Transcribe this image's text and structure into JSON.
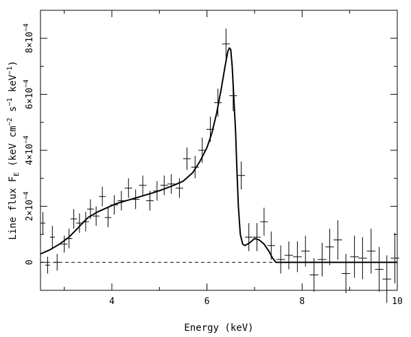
{
  "chart_data": {
    "type": "scatter",
    "xlabel": "Energy (keV)",
    "ylabel_parts": {
      "prefix": "Line flux F",
      "subscript": "E",
      "units_open": " (keV cm",
      "exp1": "−2",
      "mid1": " s",
      "exp2": "−1",
      "mid2": " keV",
      "exp3": "−1",
      "units_close": ")"
    },
    "xlim": [
      2.5,
      10.0
    ],
    "ylim": [
      -0.0001,
      0.0009
    ],
    "x_ticks": [
      {
        "value": 4,
        "label": "4"
      },
      {
        "value": 6,
        "label": "6"
      },
      {
        "value": 8,
        "label": "8"
      },
      {
        "value": 10,
        "label": "10"
      }
    ],
    "x_minor_ticks": [
      3,
      5,
      7,
      9
    ],
    "y_ticks": [
      {
        "value": 0,
        "mantissa": "0",
        "exp": ""
      },
      {
        "value": 0.0002,
        "mantissa": "2×10",
        "exp": "−4"
      },
      {
        "value": 0.0004,
        "mantissa": "4×10",
        "exp": "−4"
      },
      {
        "value": 0.0006,
        "mantissa": "6×10",
        "exp": "−4"
      },
      {
        "value": 0.0008,
        "mantissa": "8×10",
        "exp": "−4"
      }
    ],
    "y_minor_ticks": [
      0.0001,
      0.0003,
      0.0005,
      0.0007
    ],
    "zero_line": {
      "y": 0,
      "style": "dashed"
    },
    "grid": false,
    "series": [
      {
        "kind": "data_points_with_errorbars",
        "points": [
          {
            "x": 2.55,
            "xerr": 0.05,
            "y": 0.00014,
            "yerr": 4e-05
          },
          {
            "x": 2.65,
            "xerr": 0.05,
            "y": -1e-05,
            "yerr": 3e-05
          },
          {
            "x": 2.75,
            "xerr": 0.05,
            "y": 9e-05,
            "yerr": 4e-05
          },
          {
            "x": 2.85,
            "xerr": 0.05,
            "y": 0.0,
            "yerr": 3e-05
          },
          {
            "x": 3.0,
            "xerr": 0.07,
            "y": 6.5e-05,
            "yerr": 3e-05
          },
          {
            "x": 3.1,
            "xerr": 0.07,
            "y": 8.5e-05,
            "yerr": 3.5e-05
          },
          {
            "x": 3.2,
            "xerr": 0.07,
            "y": 0.000155,
            "yerr": 3.5e-05
          },
          {
            "x": 3.32,
            "xerr": 0.07,
            "y": 0.00014,
            "yerr": 3.5e-05
          },
          {
            "x": 3.45,
            "xerr": 0.07,
            "y": 0.000145,
            "yerr": 3.5e-05
          },
          {
            "x": 3.55,
            "xerr": 0.07,
            "y": 0.00019,
            "yerr": 3.5e-05
          },
          {
            "x": 3.67,
            "xerr": 0.07,
            "y": 0.000165,
            "yerr": 3.5e-05
          },
          {
            "x": 3.8,
            "xerr": 0.07,
            "y": 0.000235,
            "yerr": 3.5e-05
          },
          {
            "x": 3.92,
            "xerr": 0.07,
            "y": 0.00016,
            "yerr": 3.5e-05
          },
          {
            "x": 4.05,
            "xerr": 0.08,
            "y": 0.000205,
            "yerr": 3.5e-05
          },
          {
            "x": 4.2,
            "xerr": 0.08,
            "y": 0.00022,
            "yerr": 3.5e-05
          },
          {
            "x": 4.35,
            "xerr": 0.08,
            "y": 0.000265,
            "yerr": 3.5e-05
          },
          {
            "x": 4.5,
            "xerr": 0.08,
            "y": 0.000225,
            "yerr": 3.5e-05
          },
          {
            "x": 4.65,
            "xerr": 0.08,
            "y": 0.000275,
            "yerr": 3.5e-05
          },
          {
            "x": 4.8,
            "xerr": 0.08,
            "y": 0.00022,
            "yerr": 3.5e-05
          },
          {
            "x": 4.95,
            "xerr": 0.08,
            "y": 0.000255,
            "yerr": 3.5e-05
          },
          {
            "x": 5.1,
            "xerr": 0.08,
            "y": 0.000275,
            "yerr": 3.5e-05
          },
          {
            "x": 5.25,
            "xerr": 0.08,
            "y": 0.00028,
            "yerr": 3.5e-05
          },
          {
            "x": 5.42,
            "xerr": 0.08,
            "y": 0.000265,
            "yerr": 3.5e-05
          },
          {
            "x": 5.58,
            "xerr": 0.08,
            "y": 0.00037,
            "yerr": 4e-05
          },
          {
            "x": 5.75,
            "xerr": 0.08,
            "y": 0.00034,
            "yerr": 4e-05
          },
          {
            "x": 5.9,
            "xerr": 0.08,
            "y": 0.0004,
            "yerr": 4.5e-05
          },
          {
            "x": 6.07,
            "xerr": 0.08,
            "y": 0.000475,
            "yerr": 4.5e-05
          },
          {
            "x": 6.23,
            "xerr": 0.08,
            "y": 0.00057,
            "yerr": 5e-05
          },
          {
            "x": 6.4,
            "xerr": 0.08,
            "y": 0.00078,
            "yerr": 5.5e-05
          },
          {
            "x": 6.55,
            "xerr": 0.08,
            "y": 0.000595,
            "yerr": 5.5e-05
          },
          {
            "x": 6.72,
            "xerr": 0.08,
            "y": 0.00031,
            "yerr": 5e-05
          },
          {
            "x": 6.88,
            "xerr": 0.08,
            "y": 9e-05,
            "yerr": 5e-05
          },
          {
            "x": 7.05,
            "xerr": 0.08,
            "y": 9e-05,
            "yerr": 5e-05
          },
          {
            "x": 7.2,
            "xerr": 0.08,
            "y": 0.000145,
            "yerr": 5e-05
          },
          {
            "x": 7.35,
            "xerr": 0.08,
            "y": 6e-05,
            "yerr": 5e-05
          },
          {
            "x": 7.55,
            "xerr": 0.09,
            "y": 1e-05,
            "yerr": 5e-05
          },
          {
            "x": 7.72,
            "xerr": 0.09,
            "y": 2.5e-05,
            "yerr": 5e-05
          },
          {
            "x": 7.9,
            "xerr": 0.09,
            "y": 2e-05,
            "yerr": 5.5e-05
          },
          {
            "x": 8.07,
            "xerr": 0.09,
            "y": 4e-05,
            "yerr": 5.5e-05
          },
          {
            "x": 8.25,
            "xerr": 0.09,
            "y": -4.5e-05,
            "yerr": 6e-05
          },
          {
            "x": 8.42,
            "xerr": 0.09,
            "y": 1e-05,
            "yerr": 6e-05
          },
          {
            "x": 8.58,
            "xerr": 0.09,
            "y": 5.5e-05,
            "yerr": 6.5e-05
          },
          {
            "x": 8.75,
            "xerr": 0.09,
            "y": 8e-05,
            "yerr": 7e-05
          },
          {
            "x": 8.92,
            "xerr": 0.09,
            "y": -4e-05,
            "yerr": 7e-05
          },
          {
            "x": 9.1,
            "xerr": 0.09,
            "y": 2e-05,
            "yerr": 7.5e-05
          },
          {
            "x": 9.27,
            "xerr": 0.09,
            "y": 1.5e-05,
            "yerr": 7.5e-05
          },
          {
            "x": 9.45,
            "xerr": 0.09,
            "y": 4e-05,
            "yerr": 8e-05
          },
          {
            "x": 9.62,
            "xerr": 0.09,
            "y": -2.5e-05,
            "yerr": 8e-05
          },
          {
            "x": 9.78,
            "xerr": 0.09,
            "y": -6e-05,
            "yerr": 8.5e-05
          },
          {
            "x": 9.95,
            "xerr": 0.09,
            "y": 1.5e-05,
            "yerr": 9e-05
          }
        ]
      },
      {
        "kind": "model_curve",
        "x": [
          2.5,
          2.7,
          2.9,
          3.1,
          3.3,
          3.5,
          3.7,
          3.9,
          4.1,
          4.3,
          4.5,
          4.7,
          4.9,
          5.1,
          5.3,
          5.5,
          5.7,
          5.85,
          6.0,
          6.1,
          6.2,
          6.3,
          6.38,
          6.44,
          6.47,
          6.5,
          6.53,
          6.56,
          6.6,
          6.63,
          6.66,
          6.7,
          6.75,
          6.8,
          6.9,
          7.0,
          7.1,
          7.2,
          7.3,
          7.38,
          7.45,
          7.55,
          8.0,
          9.0,
          10.0
        ],
        "y": [
          3e-05,
          4.5e-05,
          6.5e-05,
          9e-05,
          0.000125,
          0.00016,
          0.00018,
          0.000195,
          0.00021,
          0.00022,
          0.00023,
          0.00024,
          0.00025,
          0.000262,
          0.000275,
          0.00029,
          0.00032,
          0.00036,
          0.00041,
          0.00046,
          0.00053,
          0.00062,
          0.0007,
          0.000755,
          0.000765,
          0.00076,
          0.0007,
          0.0006,
          0.00047,
          0.00033,
          0.0002,
          0.0001,
          6.5e-05,
          6e-05,
          7e-05,
          8.5e-05,
          8e-05,
          6.5e-05,
          4e-05,
          1.5e-05,
          0.0,
          0.0,
          0.0,
          0.0,
          0.0
        ]
      }
    ]
  }
}
